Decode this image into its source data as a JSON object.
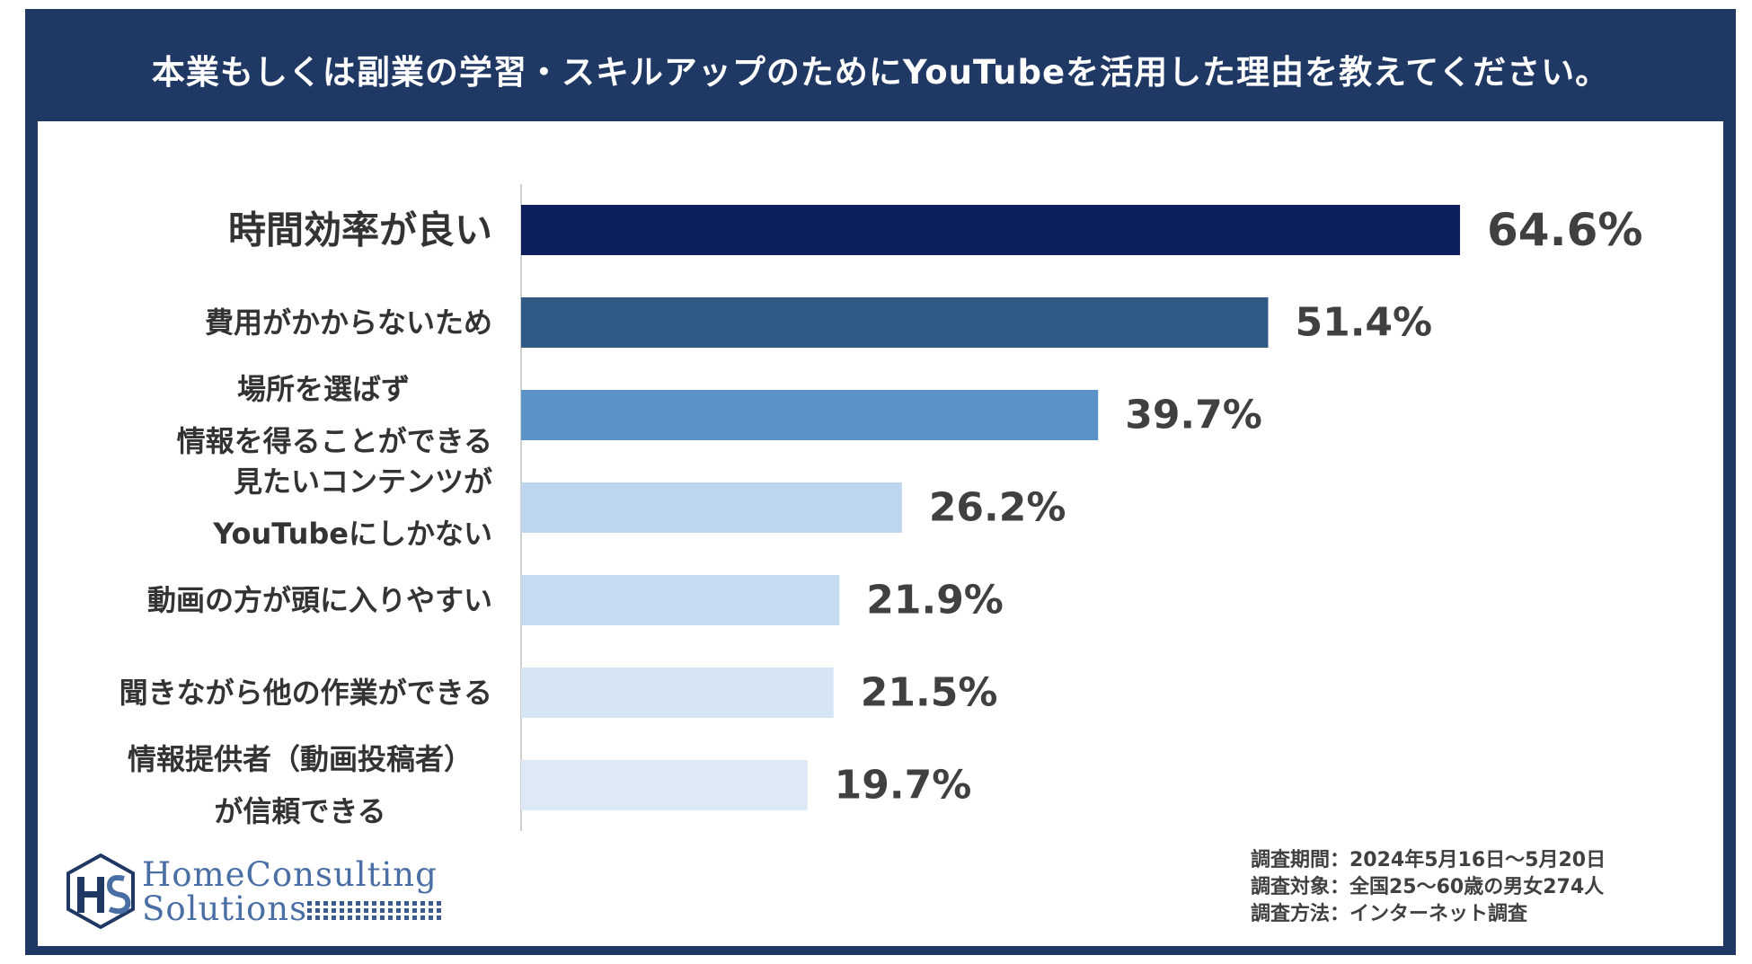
{
  "title": "本業もしくは副業の学習・スキルアップのためにYouTubeを活用した理由を教えてください。",
  "chart_data": {
    "type": "bar",
    "orientation": "horizontal",
    "title": "本業もしくは副業の学習・スキルアップのためにYouTubeを活用した理由を教えてください。",
    "categories": [
      [
        "時間効率が良い"
      ],
      [
        "費用がかからないため"
      ],
      [
        "場所を選ばず",
        "情報を得ることができる"
      ],
      [
        "見たいコンテンツが",
        "YouTubeにしかない"
      ],
      [
        "動画の方が頭に入りやすい"
      ],
      [
        "聞きながら他の作業ができる"
      ],
      [
        "情報提供者（動画投稿者）",
        "が信頼できる"
      ]
    ],
    "values": [
      64.6,
      51.4,
      39.7,
      26.2,
      21.9,
      21.5,
      19.7
    ],
    "value_labels": [
      "64.6%",
      "51.4%",
      "39.7%",
      "26.2%",
      "21.9%",
      "21.5%",
      "19.7%"
    ],
    "colors": [
      "#0c1f5c",
      "#2f5a86",
      "#5b93c9",
      "#bdd6ee",
      "#c5dbf0",
      "#d6e5f4",
      "#dde9f6"
    ],
    "highlight_index": 0,
    "highlight_color": "#0c1f5c",
    "xlim": [
      0,
      100
    ],
    "grid": false,
    "legend": "none"
  },
  "logo": {
    "line1": "HomeConsulting",
    "line2": "Solutions",
    "mark": "HS"
  },
  "survey": {
    "period": "調査期間：2024年5月16日～5月20日",
    "target": "調査対象：全国25～60歳の男女274人",
    "method": "調査方法：インターネット調査"
  }
}
